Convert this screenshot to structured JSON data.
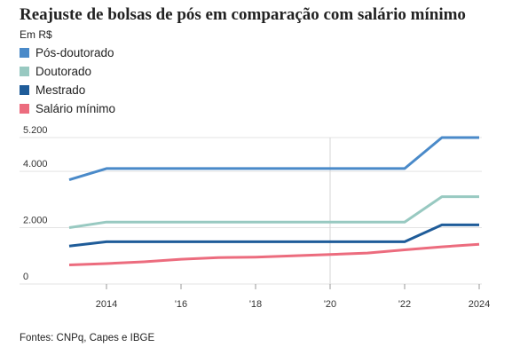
{
  "title": "Reajuste de bolsas de pós em comparação com salário mínimo",
  "unit_label": "Em R$",
  "source": "Fontes: CNPq, Capes e IBGE",
  "chart_data": {
    "type": "line",
    "title": "Reajuste de bolsas de pós em comparação com salário mínimo",
    "ylabel": "Em R$",
    "x": [
      2013,
      2014,
      2015,
      2016,
      2017,
      2018,
      2019,
      2020,
      2021,
      2022,
      2023,
      2024
    ],
    "xlim": [
      2013,
      2024
    ],
    "ylim": [
      0,
      5200
    ],
    "x_ticks": [
      {
        "value": 2014,
        "label": "2014"
      },
      {
        "value": 2016,
        "label": "'16"
      },
      {
        "value": 2018,
        "label": "'18"
      },
      {
        "value": 2020,
        "label": "'20"
      },
      {
        "value": 2022,
        "label": "'22"
      },
      {
        "value": 2024,
        "label": "2024"
      }
    ],
    "y_ticks": [
      {
        "value": 0,
        "label": "0"
      },
      {
        "value": 2000,
        "label": "2.000"
      },
      {
        "value": 4000,
        "label": "4.000"
      },
      {
        "value": 5200,
        "label": "5.200"
      }
    ],
    "grid": true,
    "highlight_x": 2020,
    "legend_position": "top-left",
    "series": [
      {
        "name": "Pós-doutorado",
        "color": "#4a8ac9",
        "values": [
          3700,
          4100,
          4100,
          4100,
          4100,
          4100,
          4100,
          4100,
          4100,
          4100,
          5200,
          5200
        ]
      },
      {
        "name": "Doutorado",
        "color": "#98c9c1",
        "values": [
          2000,
          2200,
          2200,
          2200,
          2200,
          2200,
          2200,
          2200,
          2200,
          2200,
          3100,
          3100
        ]
      },
      {
        "name": "Mestrado",
        "color": "#1f5c99",
        "values": [
          1350,
          1500,
          1500,
          1500,
          1500,
          1500,
          1500,
          1500,
          1500,
          1500,
          2100,
          2100
        ]
      },
      {
        "name": "Salário mínimo",
        "color": "#ec6c7e",
        "values": [
          678,
          724,
          788,
          880,
          937,
          954,
          998,
          1045,
          1100,
          1212,
          1320,
          1412
        ]
      }
    ]
  }
}
